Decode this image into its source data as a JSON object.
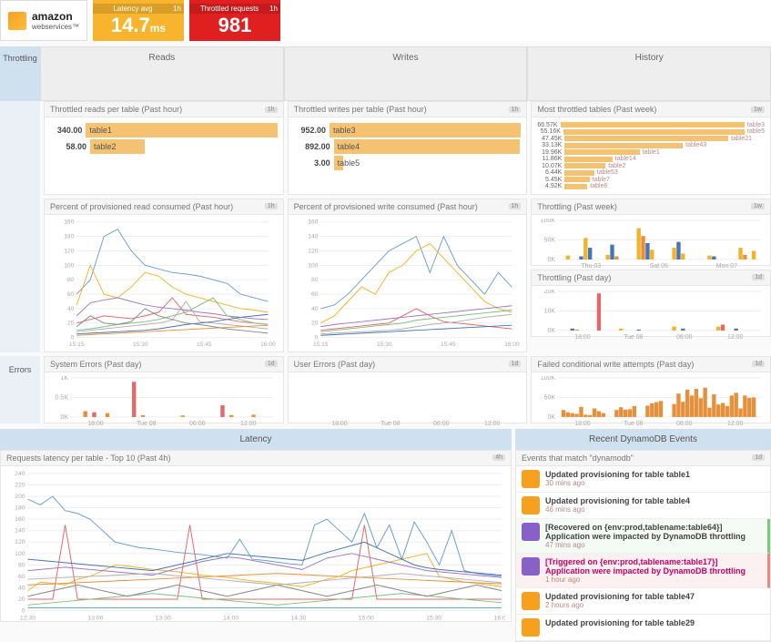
{
  "colors": {
    "latency_box": "#f7b42c",
    "throttled_box": "#e02020",
    "bar_fill": "#f5c271",
    "tab_active": "#cfe0ef",
    "grid_line": "#eeeeee",
    "axis_text": "#aaaaaa",
    "chart_palette": [
      "#6a9ed4",
      "#f0b429",
      "#a078c8",
      "#e36868",
      "#7fbf7f",
      "#b0b0b0",
      "#4676b6",
      "#e7903c",
      "#888888",
      "#5fa8c8"
    ],
    "bar_series": {
      "blue": "#4676b6",
      "yellow": "#f0b429",
      "orange": "#e7903c",
      "red": "#e36868"
    }
  },
  "header": {
    "logo_main": "amazon",
    "logo_sub": "webservices™",
    "latency": {
      "label": "Latency avg",
      "value": "14.7",
      "unit": "ms",
      "period": "1h"
    },
    "throttled": {
      "label": "Throttled requests",
      "value": "981",
      "period": "1h"
    }
  },
  "tabs": {
    "side": "Throttling",
    "cols": [
      "Reads",
      "Writes",
      "History"
    ]
  },
  "throttled_reads": {
    "title": "Throttled reads per table (Past hour)",
    "badge": "1h",
    "rows": [
      {
        "value": "340.00",
        "label": "table1",
        "pct": 95
      },
      {
        "value": "58.00",
        "label": "table2",
        "pct": 24
      }
    ]
  },
  "throttled_writes": {
    "title": "Throttled writes per table (Past hour)",
    "badge": "1h",
    "rows": [
      {
        "value": "952.00",
        "label": "table3",
        "pct": 95
      },
      {
        "value": "892.00",
        "label": "table4",
        "pct": 82
      },
      {
        "value": "3.00",
        "label": "table5",
        "pct": 4
      }
    ]
  },
  "most_throttled": {
    "title": "Most throttled tables (Past week)",
    "badge": "1w",
    "rows": [
      {
        "value": "66.57K",
        "label": "table3",
        "pct": 100
      },
      {
        "value": "55.16K",
        "label": "table5",
        "pct": 84
      },
      {
        "value": "47.45K",
        "label": "table21",
        "pct": 72
      },
      {
        "value": "33.13K",
        "label": "table43",
        "pct": 52
      },
      {
        "value": "19.96K",
        "label": "table1",
        "pct": 33
      },
      {
        "value": "11.86K",
        "label": "table14",
        "pct": 21
      },
      {
        "value": "10.07K",
        "label": "table2",
        "pct": 18
      },
      {
        "value": "6.44K",
        "label": "table53",
        "pct": 13
      },
      {
        "value": "5.45K",
        "label": "table7",
        "pct": 11
      },
      {
        "value": "4.92K",
        "label": "table6",
        "pct": 10
      }
    ]
  },
  "pct_read": {
    "title": "Percent of provisioned read consumed (Past hour)",
    "badge": "1h",
    "ylim": [
      0,
      160
    ],
    "yticks": [
      0,
      20,
      40,
      60,
      80,
      100,
      120,
      140,
      160
    ],
    "xlabels": [
      "15:15",
      "15:30",
      "15:45",
      "16:00"
    ],
    "series": [
      [
        60,
        80,
        140,
        150,
        120,
        100,
        95,
        90,
        88,
        85,
        80,
        75,
        60,
        55,
        50
      ],
      [
        45,
        100,
        60,
        55,
        70,
        90,
        85,
        70,
        60,
        55,
        50,
        45,
        40,
        38,
        35
      ],
      [
        30,
        48,
        52,
        55,
        50,
        45,
        42,
        40,
        38,
        35,
        33,
        30,
        28,
        26,
        25
      ],
      [
        20,
        25,
        30,
        28,
        26,
        30,
        35,
        55,
        32,
        30,
        28,
        25,
        22,
        20,
        18
      ],
      [
        10,
        12,
        15,
        18,
        20,
        22,
        25,
        30,
        35,
        45,
        55,
        30,
        25,
        20,
        18
      ],
      [
        8,
        10,
        12,
        14,
        16,
        18,
        20,
        24,
        50,
        22,
        20,
        18,
        16,
        14,
        12
      ],
      [
        5,
        6,
        7,
        8,
        9,
        10,
        12,
        15,
        18,
        20,
        22,
        25,
        28,
        30,
        32
      ],
      [
        3,
        4,
        5,
        6,
        7,
        8,
        9,
        10,
        11,
        12,
        13,
        14,
        15,
        16,
        17
      ],
      [
        15,
        30,
        20,
        18,
        22,
        40,
        30,
        25,
        20,
        18,
        15,
        12,
        10,
        8,
        6
      ]
    ]
  },
  "pct_write": {
    "title": "Percent of provisioned write consumed (Past hour)",
    "badge": "1h",
    "ylim": [
      0,
      160
    ],
    "yticks": [
      0,
      20,
      40,
      60,
      80,
      100,
      120,
      140,
      160
    ],
    "xlabels": [
      "15:15",
      "15:30",
      "15:45",
      "16:00"
    ],
    "series": [
      [
        40,
        45,
        60,
        80,
        100,
        120,
        130,
        140,
        90,
        140,
        100,
        80,
        60,
        90,
        70
      ],
      [
        20,
        30,
        50,
        70,
        60,
        90,
        100,
        120,
        130,
        110,
        90,
        70,
        50,
        40,
        35
      ],
      [
        15,
        18,
        20,
        22,
        24,
        26,
        28,
        30,
        32,
        34,
        36,
        38,
        40,
        42,
        44
      ],
      [
        10,
        12,
        14,
        16,
        18,
        20,
        30,
        40,
        30,
        22,
        20,
        18,
        16,
        14,
        12
      ],
      [
        8,
        10,
        12,
        14,
        16,
        18,
        20,
        24,
        26,
        28,
        30,
        32,
        34,
        36,
        38
      ],
      [
        5,
        6,
        7,
        8,
        9,
        10,
        12,
        15,
        18,
        20,
        22,
        25,
        28,
        30,
        32
      ],
      [
        3,
        4,
        5,
        6,
        7,
        8,
        9,
        10,
        11,
        12,
        13,
        14,
        15,
        16,
        17
      ]
    ]
  },
  "throttling_week": {
    "title": "Throttling (Past week)",
    "badge": "1w",
    "ylim": [
      0,
      100
    ],
    "yticks": [
      0,
      50,
      100
    ],
    "ylabel_suffix": "K",
    "xlabels": [
      "Thu 03",
      "Sat 05",
      "Mon 07"
    ],
    "bars": [
      {
        "x": 2,
        "h": 10,
        "c": "yellow"
      },
      {
        "x": 5,
        "h": 8,
        "c": "blue"
      },
      {
        "x": 6,
        "h": 55,
        "c": "yellow"
      },
      {
        "x": 7,
        "h": 30,
        "c": "blue"
      },
      {
        "x": 11,
        "h": 12,
        "c": "yellow"
      },
      {
        "x": 12,
        "h": 38,
        "c": "blue"
      },
      {
        "x": 13,
        "h": 8,
        "c": "orange"
      },
      {
        "x": 18,
        "h": 80,
        "c": "yellow"
      },
      {
        "x": 19,
        "h": 60,
        "c": "orange"
      },
      {
        "x": 20,
        "h": 42,
        "c": "blue"
      },
      {
        "x": 21,
        "h": 25,
        "c": "yellow"
      },
      {
        "x": 26,
        "h": 30,
        "c": "yellow"
      },
      {
        "x": 27,
        "h": 45,
        "c": "blue"
      },
      {
        "x": 28,
        "h": 15,
        "c": "yellow"
      },
      {
        "x": 34,
        "h": 10,
        "c": "yellow"
      },
      {
        "x": 35,
        "h": 8,
        "c": "blue"
      },
      {
        "x": 41,
        "h": 30,
        "c": "yellow"
      },
      {
        "x": 42,
        "h": 12,
        "c": "orange"
      },
      {
        "x": 44,
        "h": 22,
        "c": "yellow"
      }
    ]
  },
  "throttling_day": {
    "title": "Throttling (Past day)",
    "badge": "1d",
    "ylim": [
      0,
      20
    ],
    "yticks": [
      0,
      10,
      20
    ],
    "ylabel_suffix": "K",
    "xlabels": [
      "18:00",
      "Tue 08",
      "06:00",
      "12:00"
    ],
    "bars": [
      {
        "x": 3,
        "h": 1,
        "c": "blue"
      },
      {
        "x": 4,
        "h": 0.5,
        "c": "orange"
      },
      {
        "x": 9,
        "h": 19,
        "c": "red"
      },
      {
        "x": 14,
        "h": 1,
        "c": "yellow"
      },
      {
        "x": 18,
        "h": 0.5,
        "c": "blue"
      },
      {
        "x": 26,
        "h": 2,
        "c": "yellow"
      },
      {
        "x": 28,
        "h": 1,
        "c": "blue"
      },
      {
        "x": 36,
        "h": 2,
        "c": "yellow"
      },
      {
        "x": 37,
        "h": 3,
        "c": "red"
      },
      {
        "x": 40,
        "h": 1,
        "c": "blue"
      }
    ]
  },
  "errors_side": "Errors",
  "system_errors": {
    "title": "System Errors (Past day)",
    "badge": "1d",
    "ylim": [
      0,
      1
    ],
    "yticks": [
      0,
      0.5,
      1
    ],
    "ylabel_suffix": "K",
    "xlabels": [
      "18:00",
      "Tue 08",
      "06:00",
      "12:00"
    ],
    "bars": [
      {
        "x": 3,
        "h": 0.15,
        "c": "orange"
      },
      {
        "x": 5,
        "h": 0.12,
        "c": "red"
      },
      {
        "x": 8,
        "h": 0.1,
        "c": "orange"
      },
      {
        "x": 14,
        "h": 0.9,
        "c": "red"
      },
      {
        "x": 16,
        "h": 0.05,
        "c": "orange"
      },
      {
        "x": 25,
        "h": 0.04,
        "c": "orange"
      },
      {
        "x": 34,
        "h": 0.3,
        "c": "red"
      },
      {
        "x": 36,
        "h": 0.05,
        "c": "orange"
      },
      {
        "x": 41,
        "h": 0.06,
        "c": "orange"
      }
    ]
  },
  "user_errors": {
    "title": "User Errors (Past day)",
    "badge": "1d",
    "xlabels": [
      "18:00",
      "Tue 08",
      "06:00",
      "12:00"
    ]
  },
  "failed_writes": {
    "title": "Failed conditional write attempts (Past day)",
    "badge": "1d",
    "ylim": [
      0,
      100
    ],
    "yticks": [
      0,
      50,
      100
    ],
    "ylabel_suffix": "K",
    "xlabels": [
      "18:00",
      "Tue 08",
      "06:00",
      "12:00"
    ],
    "bars": [
      {
        "x": 1,
        "h": 18,
        "c": "orange"
      },
      {
        "x": 2,
        "h": 12,
        "c": "orange"
      },
      {
        "x": 3,
        "h": 10,
        "c": "orange"
      },
      {
        "x": 4,
        "h": 8,
        "c": "orange"
      },
      {
        "x": 5,
        "h": 26,
        "c": "orange"
      },
      {
        "x": 6,
        "h": 6,
        "c": "orange"
      },
      {
        "x": 7,
        "h": 5,
        "c": "orange"
      },
      {
        "x": 8,
        "h": 22,
        "c": "orange"
      },
      {
        "x": 9,
        "h": 15,
        "c": "orange"
      },
      {
        "x": 10,
        "h": 10,
        "c": "orange"
      },
      {
        "x": 13,
        "h": 18,
        "c": "orange"
      },
      {
        "x": 14,
        "h": 25,
        "c": "orange"
      },
      {
        "x": 15,
        "h": 19,
        "c": "orange"
      },
      {
        "x": 16,
        "h": 20,
        "c": "orange"
      },
      {
        "x": 17,
        "h": 28,
        "c": "orange"
      },
      {
        "x": 20,
        "h": 29,
        "c": "orange"
      },
      {
        "x": 21,
        "h": 35,
        "c": "orange"
      },
      {
        "x": 22,
        "h": 38,
        "c": "orange"
      },
      {
        "x": 23,
        "h": 41,
        "c": "orange"
      },
      {
        "x": 26,
        "h": 33,
        "c": "orange"
      },
      {
        "x": 27,
        "h": 60,
        "c": "orange"
      },
      {
        "x": 28,
        "h": 39,
        "c": "orange"
      },
      {
        "x": 29,
        "h": 70,
        "c": "orange"
      },
      {
        "x": 30,
        "h": 55,
        "c": "orange"
      },
      {
        "x": 31,
        "h": 72,
        "c": "orange"
      },
      {
        "x": 32,
        "h": 48,
        "c": "orange"
      },
      {
        "x": 33,
        "h": 75,
        "c": "orange"
      },
      {
        "x": 34,
        "h": 24,
        "c": "orange"
      },
      {
        "x": 35,
        "h": 58,
        "c": "orange"
      },
      {
        "x": 36,
        "h": 32,
        "c": "orange"
      },
      {
        "x": 37,
        "h": 36,
        "c": "orange"
      },
      {
        "x": 38,
        "h": 28,
        "c": "orange"
      },
      {
        "x": 39,
        "h": 55,
        "c": "orange"
      },
      {
        "x": 40,
        "h": 62,
        "c": "orange"
      },
      {
        "x": 41,
        "h": 22,
        "c": "orange"
      },
      {
        "x": 42,
        "h": 55,
        "c": "orange"
      },
      {
        "x": 43,
        "h": 49,
        "c": "orange"
      },
      {
        "x": 44,
        "h": 50,
        "c": "orange"
      }
    ]
  },
  "latency_band": "Latency",
  "events_band": "Recent DynamoDB Events",
  "latency_chart": {
    "title": "Requests latency per table - Top 10 (Past 4h)",
    "badge": "4h",
    "ylim": [
      0,
      240
    ],
    "yticks": [
      0,
      20,
      40,
      60,
      80,
      100,
      120,
      140,
      160,
      180,
      200,
      220,
      240
    ],
    "xlabels": [
      "12:30",
      "13:00",
      "13:30",
      "14:00",
      "14:30",
      "15:00",
      "15:30",
      "16:00"
    ],
    "series": [
      [
        195,
        185,
        200,
        175,
        170,
        160,
        140,
        120,
        115,
        110,
        108,
        105,
        102,
        100,
        98,
        95,
        92,
        125,
        90,
        88,
        85,
        82,
        80,
        150,
        160,
        140,
        120,
        170,
        110,
        150,
        90,
        155,
        120,
        80,
        140,
        70,
        65,
        62,
        60
      ],
      [
        35,
        50,
        48,
        45,
        55,
        60,
        70,
        80,
        78,
        75,
        72,
        70,
        68,
        65,
        62,
        60,
        58,
        55,
        52,
        50,
        48,
        45,
        42,
        48,
        55,
        60,
        70,
        75,
        80,
        85,
        90,
        95,
        100,
        60,
        55,
        50,
        48,
        45,
        42
      ],
      [
        70,
        72,
        74,
        76,
        74,
        72,
        70,
        68,
        66,
        64,
        62,
        68,
        74,
        80,
        86,
        90,
        94,
        92,
        88,
        84,
        80,
        76,
        72,
        82,
        92,
        96,
        100,
        95,
        90,
        85,
        80,
        75,
        70,
        68,
        66,
        64,
        62,
        60,
        58
      ],
      [
        20,
        20,
        20,
        150,
        20,
        20,
        20,
        20,
        20,
        20,
        20,
        20,
        20,
        150,
        20,
        20,
        20,
        20,
        20,
        20,
        20,
        20,
        20,
        20,
        20,
        20,
        20,
        150,
        20,
        20,
        20,
        20,
        20,
        20,
        20,
        20,
        20,
        20,
        20
      ],
      [
        10,
        12,
        14,
        16,
        18,
        20,
        22,
        24,
        26,
        28,
        30,
        28,
        26,
        24,
        22,
        20,
        18,
        16,
        14,
        12,
        10,
        12,
        14,
        16,
        18,
        20,
        22,
        24,
        26,
        28,
        30,
        28,
        26,
        24,
        22,
        20,
        18,
        16,
        14
      ],
      [
        55,
        56,
        57,
        58,
        59,
        60,
        61,
        62,
        63,
        64,
        65,
        63,
        61,
        59,
        57,
        55,
        53,
        51,
        49,
        47,
        45,
        47,
        49,
        51,
        53,
        55,
        57,
        59,
        61,
        63,
        65,
        63,
        61,
        59,
        57,
        55,
        53,
        51,
        49
      ],
      [
        90,
        88,
        86,
        84,
        82,
        80,
        78,
        76,
        74,
        72,
        70,
        75,
        80,
        85,
        90,
        95,
        100,
        98,
        96,
        94,
        92,
        90,
        88,
        95,
        102,
        108,
        114,
        120,
        110,
        100,
        90,
        80,
        75,
        72,
        70,
        68,
        66,
        64,
        62
      ],
      [
        45,
        46,
        47,
        48,
        49,
        50,
        51,
        52,
        53,
        54,
        55,
        56,
        57,
        58,
        59,
        60,
        61,
        62,
        63,
        64,
        65,
        64,
        63,
        62,
        61,
        60,
        59,
        58,
        57,
        56,
        55,
        54,
        53,
        52,
        51,
        50,
        49,
        48,
        47
      ],
      [
        25,
        30,
        35,
        40,
        45,
        40,
        35,
        30,
        25,
        30,
        35,
        40,
        45,
        40,
        35,
        30,
        25,
        30,
        35,
        40,
        45,
        40,
        35,
        30,
        25,
        30,
        35,
        40,
        45,
        40,
        35,
        30,
        25,
        30,
        35,
        40,
        45,
        40,
        35
      ],
      [
        5,
        5,
        5,
        5,
        5,
        5,
        5,
        5,
        5,
        5,
        5,
        5,
        5,
        5,
        5,
        5,
        5,
        5,
        5,
        5,
        5,
        5,
        5,
        5,
        5,
        5,
        5,
        5,
        5,
        5,
        5,
        5,
        5,
        5,
        5,
        5,
        5,
        5,
        5
      ]
    ]
  },
  "events": {
    "title": "Events that match \"dynamodb\"",
    "badge": "1d",
    "items": [
      {
        "icon": "#f7a01e",
        "title": "Updated provisioning for table table1",
        "time": "30 mins ago",
        "cls": ""
      },
      {
        "icon": "#f7a01e",
        "title": "Updated provisioning for table table4",
        "time": "46 mins ago",
        "cls": ""
      },
      {
        "icon": "#8860c8",
        "title": "[Recovered on {env:prod,tablename:table64}] Application were impacted by DynamoDB throttling",
        "time": "47 mins ago",
        "cls": "green"
      },
      {
        "icon": "#8860c8",
        "title": "[Triggered on {env:prod,tablename:table17}] Application were impacted by DynamoDB throttling",
        "time": "1 hour ago",
        "cls": "red"
      },
      {
        "icon": "#f7a01e",
        "title": "Updated provisioning for table table47",
        "time": "2 hours ago",
        "cls": ""
      },
      {
        "icon": "#f7a01e",
        "title": "Updated provisioning for table table29",
        "time": "",
        "cls": ""
      }
    ]
  }
}
